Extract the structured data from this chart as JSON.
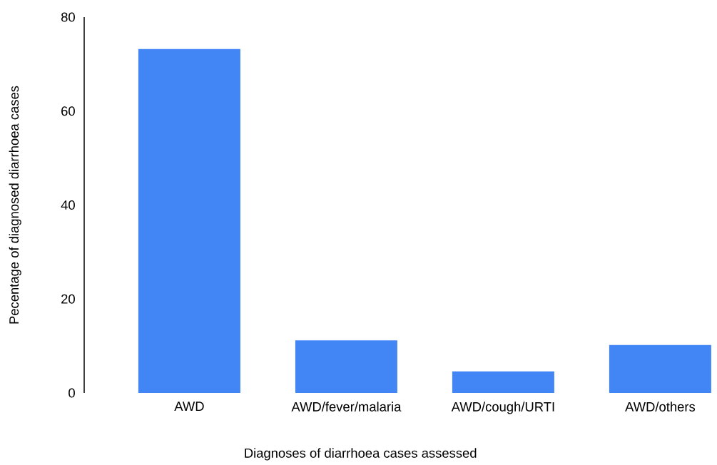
{
  "chart_data": {
    "type": "bar",
    "xlabel": "Diagnoses of diarrhoea cases assessed",
    "ylabel": "Pecentage of diagnosed diarrhoea cases",
    "categories": [
      "AWD",
      "AWD/fever/malaria",
      "AWD/cough/URTI",
      "AWD/others"
    ],
    "values": [
      73.2,
      11.2,
      4.6,
      10.2
    ],
    "color": "#4285f4",
    "ylim": [
      0,
      80
    ],
    "yticks": [
      0,
      20,
      40,
      60,
      80
    ],
    "grid": false
  }
}
